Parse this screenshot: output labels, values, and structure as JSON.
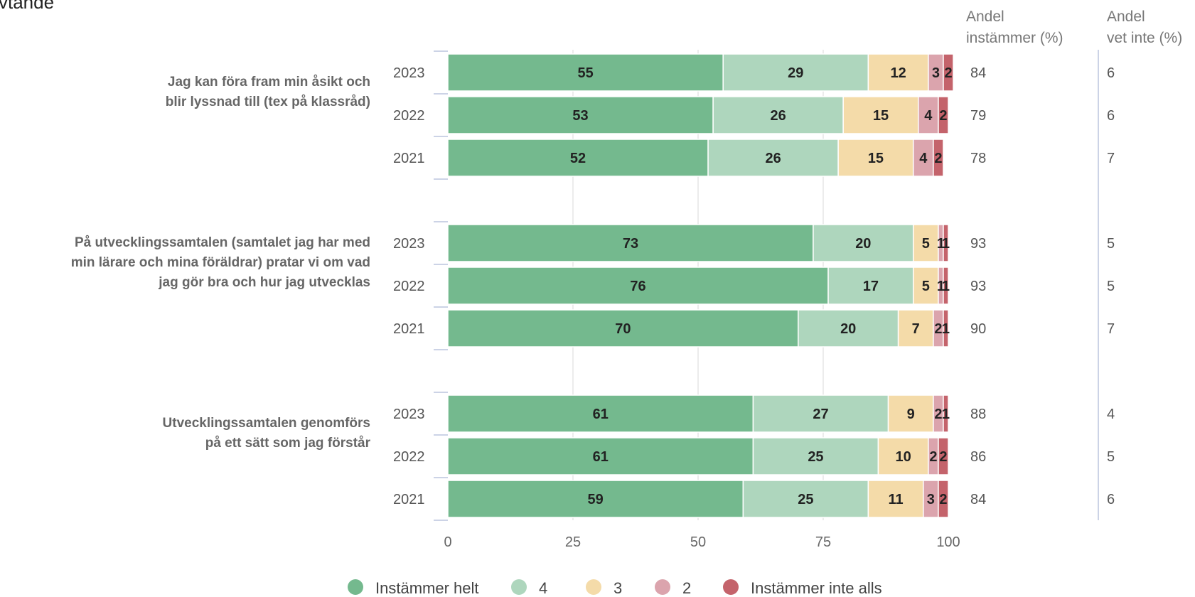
{
  "title_fragment": "vtande",
  "chart_data": {
    "type": "bar",
    "orientation": "horizontal",
    "stacked": true,
    "xlim": [
      0,
      100
    ],
    "x_ticks": [
      "0",
      "25",
      "50",
      "75",
      "100"
    ],
    "grid": true,
    "legend_position": "bottom",
    "series": [
      {
        "name": "Instämmer helt",
        "color": "#74b98e"
      },
      {
        "name": "4",
        "color": "#aed6bd"
      },
      {
        "name": "3",
        "color": "#f4dba9"
      },
      {
        "name": "2",
        "color": "#dba4ad"
      },
      {
        "name": "Instämmer inte alls",
        "color": "#c4636b"
      }
    ],
    "columns": [
      "Andel instämmer (%)",
      "Andel vet inte (%)"
    ],
    "groups": [
      {
        "question_lines": [
          "Jag kan föra fram min åsikt och",
          "blir lyssnad till (tex på klassråd)"
        ],
        "rows": [
          {
            "year": "2023",
            "values": [
              55,
              29,
              12,
              3,
              2
            ],
            "agree": "84",
            "dont_know": "6"
          },
          {
            "year": "2022",
            "values": [
              53,
              26,
              15,
              4,
              2
            ],
            "agree": "79",
            "dont_know": "6"
          },
          {
            "year": "2021",
            "values": [
              52,
              26,
              15,
              4,
              2
            ],
            "agree": "78",
            "dont_know": "7"
          }
        ]
      },
      {
        "question_lines": [
          "På utvecklingssamtalen (samtalet jag har med",
          "min lärare och mina föräldrar) pratar vi om vad",
          "jag gör bra och hur jag utvecklas"
        ],
        "rows": [
          {
            "year": "2023",
            "values": [
              73,
              20,
              5,
              1,
              1
            ],
            "agree": "93",
            "dont_know": "5"
          },
          {
            "year": "2022",
            "values": [
              76,
              17,
              5,
              1,
              1
            ],
            "agree": "93",
            "dont_know": "5"
          },
          {
            "year": "2021",
            "values": [
              70,
              20,
              7,
              2,
              1
            ],
            "agree": "90",
            "dont_know": "7"
          }
        ]
      },
      {
        "question_lines": [
          "Utvecklingssamtalen genomförs",
          "på ett sätt som jag förstår"
        ],
        "rows": [
          {
            "year": "2023",
            "values": [
              61,
              27,
              9,
              2,
              1
            ],
            "agree": "88",
            "dont_know": "4"
          },
          {
            "year": "2022",
            "values": [
              61,
              25,
              10,
              2,
              2
            ],
            "agree": "86",
            "dont_know": "5"
          },
          {
            "year": "2021",
            "values": [
              59,
              25,
              11,
              3,
              2
            ],
            "agree": "84",
            "dont_know": "6"
          }
        ]
      }
    ]
  }
}
